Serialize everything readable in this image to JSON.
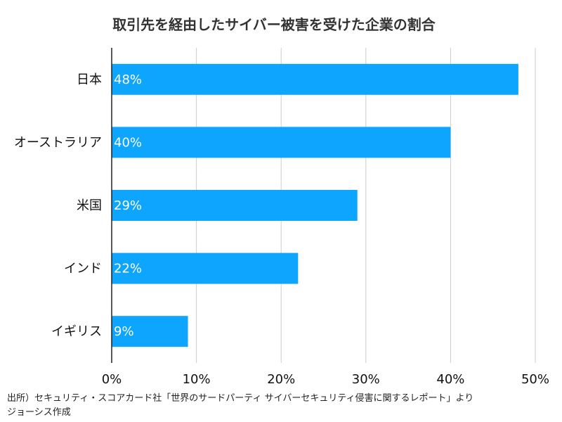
{
  "chart_data": {
    "type": "bar",
    "orientation": "horizontal",
    "title": "取引先を経由したサイバー被害を受けた企業の割合",
    "categories": [
      "日本",
      "オーストラリア",
      "米国",
      "インド",
      "イギリス"
    ],
    "values": [
      48,
      40,
      29,
      22,
      9
    ],
    "value_labels": [
      "48%",
      "40%",
      "29%",
      "22%",
      "9%"
    ],
    "xlim": [
      0,
      50
    ],
    "x_ticks": [
      0,
      10,
      20,
      30,
      40,
      50
    ],
    "x_tick_labels": [
      "0%",
      "10%",
      "20%",
      "30%",
      "40%",
      "50%"
    ],
    "xlabel": "",
    "ylabel": "",
    "grid": "vertical",
    "bar_color": "#0ea5ff",
    "grid_color": "#cccccc"
  },
  "source": {
    "line1": "出所）セキュリティ・スコアカード社「世界のサードパーティ サイバーセキュリティ侵害に関するレポート」より",
    "line2": "ジョーシス作成"
  }
}
